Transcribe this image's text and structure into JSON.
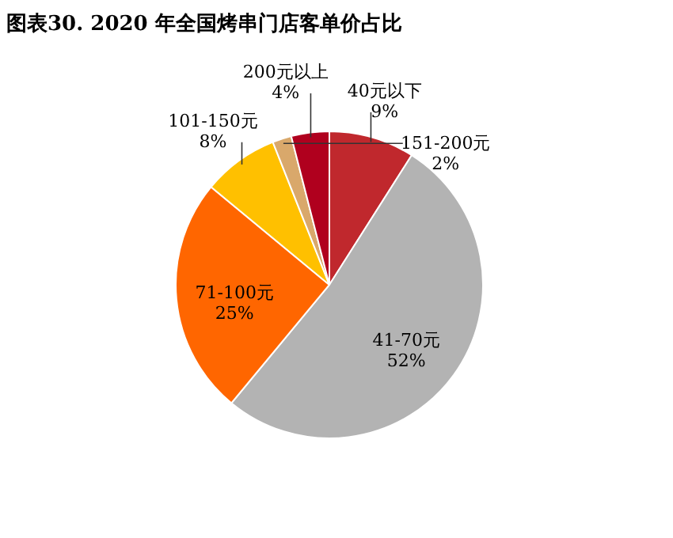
{
  "chart_data": {
    "type": "pie",
    "title": "图表30. 2020 年全国烤串门店客单价占比",
    "categories": [
      "40元以下",
      "41-70元",
      "71-100元",
      "101-150元",
      "151-200元",
      "200元以上"
    ],
    "values": [
      9,
      52,
      25,
      8,
      2,
      4
    ],
    "value_labels": [
      "9%",
      "52%",
      "25%",
      "8%",
      "2%",
      "4%"
    ],
    "colors": [
      "#c0282d",
      "#b3b3b3",
      "#ff6600",
      "#ffc000",
      "#d9a86b",
      "#b0001e"
    ],
    "legend": false
  }
}
